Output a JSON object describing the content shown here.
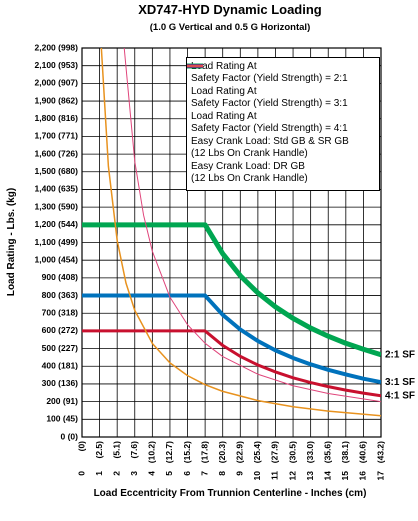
{
  "chart_data": {
    "type": "line",
    "title": "XD747-HYD Dynamic Loading",
    "subtitle": "(1.0 G Vertical and 0.5 G Horizontal)",
    "y_label": "Load Rating - Lbs. (kg)",
    "x_label": "Load Eccentricity From Trunnion Centerline - Inches (cm)",
    "xlim": [
      0,
      17
    ],
    "ylim": [
      0,
      2200
    ],
    "xticks": [
      0,
      1,
      2,
      3,
      4,
      5,
      6,
      7,
      8,
      9,
      10,
      11,
      12,
      13,
      14,
      15,
      16,
      17
    ],
    "xtick_cm_labels": [
      "(0)",
      "(2.5)",
      "(5.1)",
      "(7.6)",
      "(10.2)",
      "(12.7)",
      "(15.2)",
      "(17.8)",
      "(20.3)",
      "(22.9)",
      "(25.4)",
      "(27.9)",
      "(30.5)",
      "(33.0)",
      "(35.6)",
      "(38.1)",
      "(40.6)",
      "(43.2)"
    ],
    "yticks": [
      {
        "value": 0,
        "label": "0 (0)"
      },
      {
        "value": 100,
        "label": "100 (45)"
      },
      {
        "value": 200,
        "label": "200 (91)"
      },
      {
        "value": 300,
        "label": "300 (136)"
      },
      {
        "value": 400,
        "label": "400 (181)"
      },
      {
        "value": 500,
        "label": "500 (227)"
      },
      {
        "value": 600,
        "label": "600 (272)"
      },
      {
        "value": 700,
        "label": "700 (318)"
      },
      {
        "value": 800,
        "label": "800 (363)"
      },
      {
        "value": 900,
        "label": "900 (408)"
      },
      {
        "value": 1000,
        "label": "1,000 (454)"
      },
      {
        "value": 1100,
        "label": "1,100 (499)"
      },
      {
        "value": 1200,
        "label": "1,200 (544)"
      },
      {
        "value": 1300,
        "label": "1,300 (590)"
      },
      {
        "value": 1400,
        "label": "1,400 (635)"
      },
      {
        "value": 1500,
        "label": "1,500 (680)"
      },
      {
        "value": 1600,
        "label": "1,600 (726)"
      },
      {
        "value": 1700,
        "label": "1,700 (771)"
      },
      {
        "value": 1800,
        "label": "1,800 (816)"
      },
      {
        "value": 1900,
        "label": "1,900 (862)"
      },
      {
        "value": 2000,
        "label": "2,000 (907)"
      },
      {
        "value": 2100,
        "label": "2,100 (953)"
      },
      {
        "value": 2200,
        "label": "2,200 (998)"
      }
    ],
    "grid": true,
    "legend": "top-right",
    "series": [
      {
        "name": "Load Rating At\nSafety Factor (Yield Strength) = 2:1",
        "color": "#00a651",
        "line_width": 5,
        "end_label": "2:1 SF",
        "x": [
          0,
          7,
          8,
          9,
          10,
          11,
          12,
          13,
          14,
          15,
          16,
          17
        ],
        "values": [
          1200,
          1200,
          1037,
          912,
          815,
          736,
          671,
          616,
          570,
          530,
          496,
          465
        ]
      },
      {
        "name": "Load Rating At\nSafety Factor (Yield Strength) = 3:1",
        "color": "#0072bc",
        "line_width": 4,
        "end_label": "3:1 SF",
        "x": [
          0,
          7,
          8,
          9,
          10,
          11,
          12,
          13,
          14,
          15,
          16,
          17
        ],
        "values": [
          800,
          800,
          691,
          608,
          543,
          490,
          447,
          411,
          380,
          354,
          330,
          310
        ]
      },
      {
        "name": "Load Rating At\nSafety Factor (Yield Strength) = 4:1",
        "color": "#c8102e",
        "line_width": 3,
        "end_label": "4:1 SF",
        "x": [
          0,
          7,
          8,
          9,
          10,
          11,
          12,
          13,
          14,
          15,
          16,
          17
        ],
        "values": [
          600,
          600,
          518,
          456,
          407,
          368,
          335,
          308,
          285,
          265,
          248,
          233
        ]
      },
      {
        "name": "Easy Crank Load: Std GB & SR GB\n(12 Lbs On Crank Handle)",
        "color": "#e8921e",
        "line_width": 1.5,
        "x": [
          1.1,
          1.5,
          2,
          2.5,
          3,
          4,
          5,
          6,
          7,
          8,
          10,
          12,
          14,
          17
        ],
        "values": [
          2200,
          1532,
          1111,
          871,
          716,
          529,
          419,
          347,
          296,
          258,
          206,
          171,
          146,
          120
        ]
      },
      {
        "name": "Easy Crank Load: DR GB\n(12 Lbs On Crank Handle)",
        "color": "#e0457b",
        "line_width": 1,
        "x": [
          2.4,
          3,
          3.5,
          4,
          5,
          6,
          7,
          8,
          10,
          12,
          14,
          17
        ],
        "values": [
          2200,
          1559,
          1255,
          1050,
          791,
          635,
          530,
          455,
          355,
          290,
          246,
          200
        ]
      }
    ]
  }
}
